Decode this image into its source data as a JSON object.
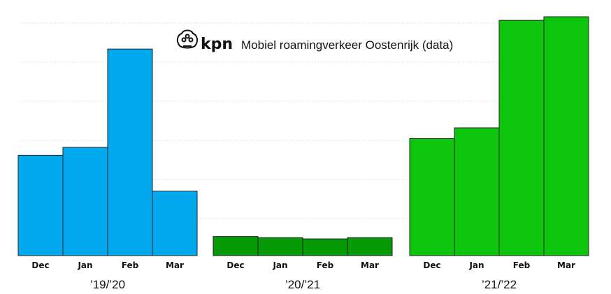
{
  "brand": {
    "name": "kpn",
    "logo_icon": "kpn-crown-logo-icon"
  },
  "chart_data": {
    "type": "bar",
    "title": "Mobiel roamingverkeer Oostenrijk (data)",
    "xlabel": "",
    "ylabel": "",
    "ylim": [
      0,
      100
    ],
    "grid": true,
    "grid_style": "dotted",
    "groups": [
      {
        "label": "’19/’20",
        "color": "#03A9EF",
        "categories": [
          "Dec",
          "Jan",
          "Feb",
          "Mar"
        ],
        "values": [
          42,
          45.3,
          86.5,
          27
        ]
      },
      {
        "label": "’20/’21",
        "color": "#079A07",
        "categories": [
          "Dec",
          "Jan",
          "Feb",
          "Mar"
        ],
        "values": [
          8,
          7.5,
          7,
          7.5
        ]
      },
      {
        "label": "’21/’22",
        "color": "#0DC50D",
        "categories": [
          "Dec",
          "Jan",
          "Feb",
          "Mar"
        ],
        "values": [
          49,
          53.5,
          98.5,
          100
        ]
      }
    ]
  }
}
